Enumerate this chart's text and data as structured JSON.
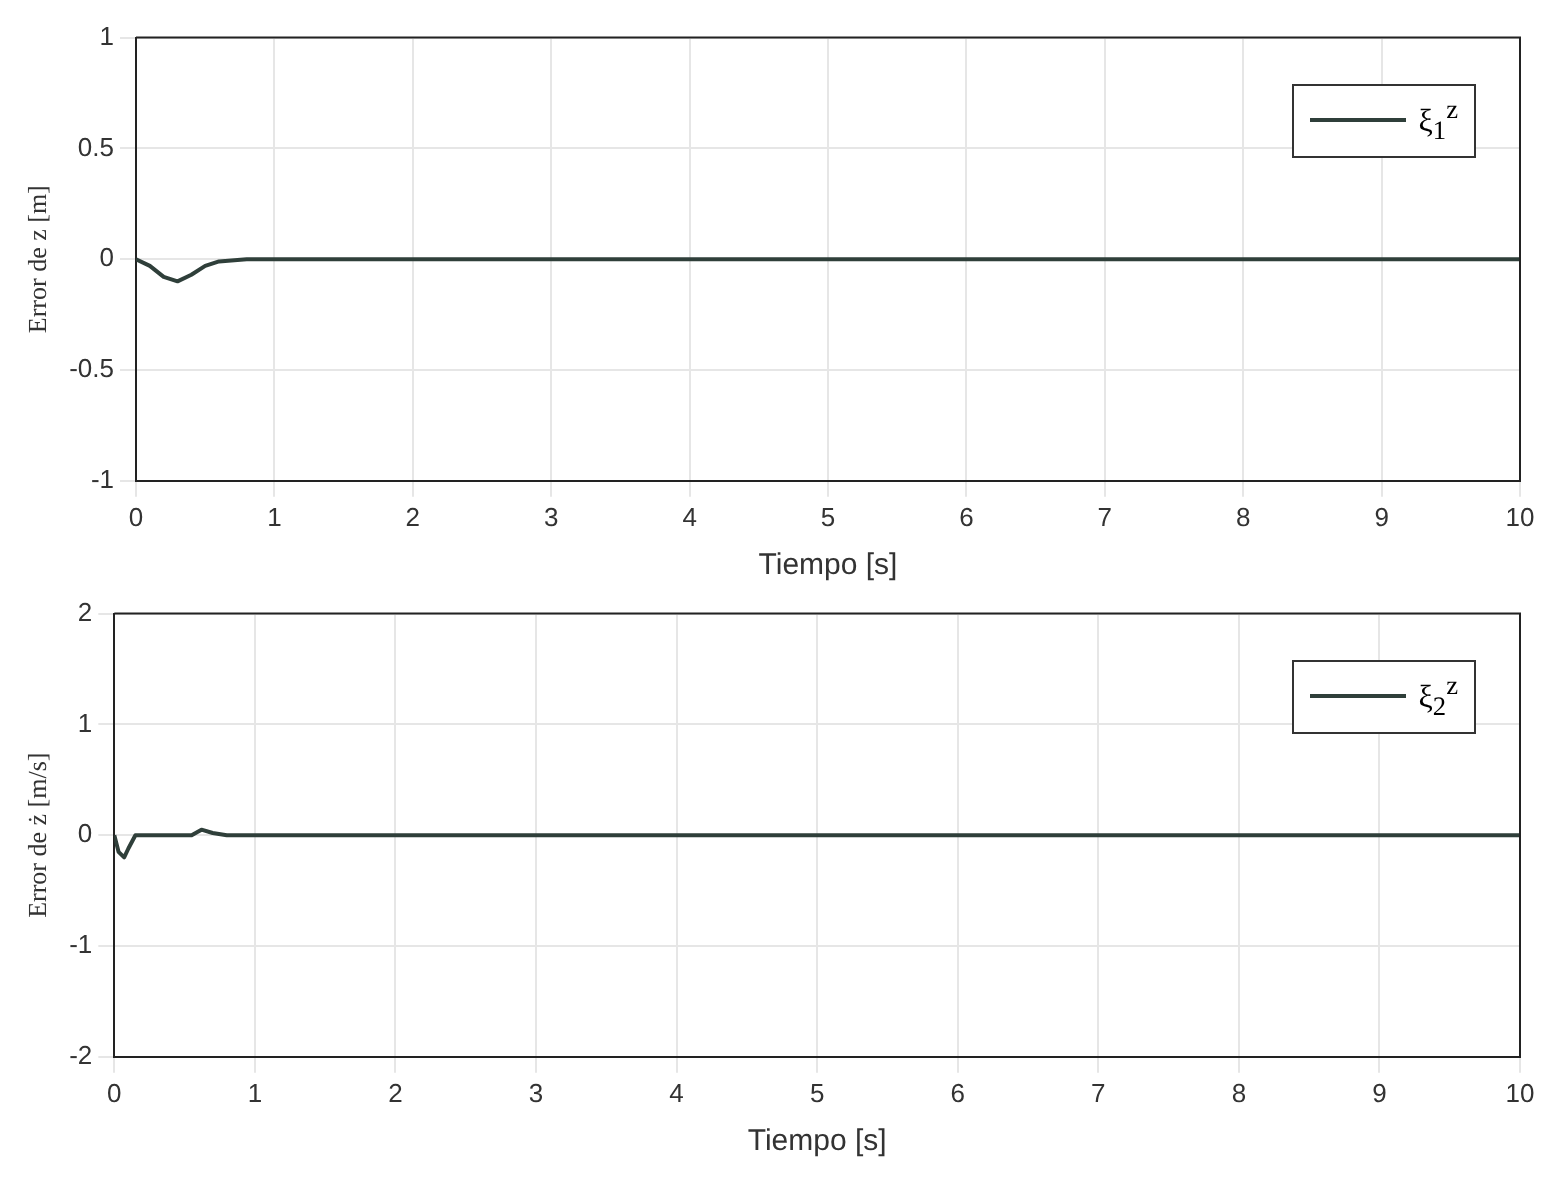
{
  "chart_data": [
    {
      "type": "line",
      "xlabel": "Tiempo [s]",
      "ylabel": "Error de z [m]",
      "xlim": [
        0,
        10
      ],
      "xticks": [
        0,
        1,
        2,
        3,
        4,
        5,
        6,
        7,
        8,
        9,
        10
      ],
      "ylim": [
        -1,
        1
      ],
      "yticks": [
        -1,
        -0.5,
        0,
        0.5,
        1
      ],
      "grid": true,
      "legend": "top right",
      "marker": "none",
      "line_style": "solid",
      "x": [
        0,
        0.1,
        0.2,
        0.3,
        0.4,
        0.5,
        0.6,
        0.8,
        1,
        2,
        4,
        6,
        8,
        10
      ],
      "series": [
        {
          "name": "ξ$_{1}$$^{z}$",
          "color": "#2f3f3a",
          "values": [
            0,
            -0.03,
            -0.08,
            -0.1,
            -0.07,
            -0.03,
            -0.01,
            0,
            0,
            0,
            0,
            0,
            0,
            0
          ]
        }
      ]
    },
    {
      "type": "line",
      "xlabel": "Tiempo [s]",
      "ylabel": "Error de ż [m/s]",
      "xlim": [
        0,
        10
      ],
      "xticks": [
        0,
        1,
        2,
        3,
        4,
        5,
        6,
        7,
        8,
        9,
        10
      ],
      "ylim": [
        -2,
        2
      ],
      "yticks": [
        -2,
        -1,
        0,
        1,
        2
      ],
      "grid": true,
      "legend": "top right",
      "marker": "none",
      "line_style": "solid",
      "x": [
        0,
        0.03,
        0.07,
        0.1,
        0.15,
        0.3,
        0.55,
        0.62,
        0.7,
        0.8,
        1,
        2,
        4,
        6,
        8,
        10
      ],
      "series": [
        {
          "name": "ξ$_{2}$$^{z}$",
          "color": "#2f3f3a",
          "values": [
            0,
            -0.15,
            -0.2,
            -0.12,
            0,
            0,
            0,
            0.05,
            0.02,
            0,
            0,
            0,
            0,
            0,
            0,
            0
          ]
        }
      ]
    }
  ]
}
